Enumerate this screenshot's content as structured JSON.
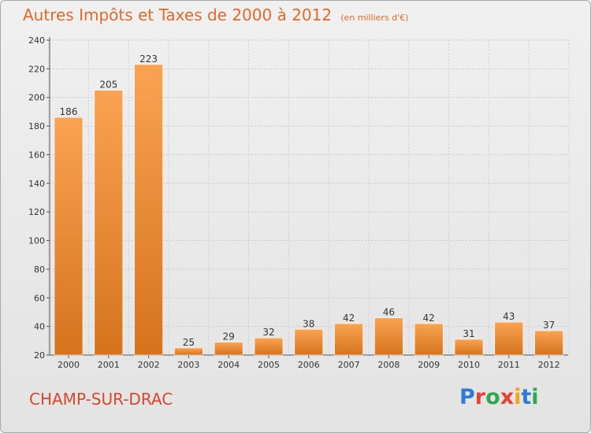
{
  "header": {
    "title": "Autres Impôts et Taxes de 2000 à 2012",
    "unit": "(en milliers d'€)"
  },
  "footer": {
    "city": "CHAMP-SUR-DRAC",
    "logo_letters": [
      {
        "ch": "P",
        "color": "#2e7bd6"
      },
      {
        "ch": "r",
        "color": "#e8432e"
      },
      {
        "ch": "o",
        "color": "#2fa84f"
      },
      {
        "ch": "x",
        "color": "#e8432e"
      },
      {
        "ch": "i",
        "color": "#f2a51a"
      },
      {
        "ch": "t",
        "color": "#2e7bd6"
      },
      {
        "ch": "i",
        "color": "#2fa84f"
      }
    ]
  },
  "colors": {
    "bar_light": "#f9a352",
    "bar_dark": "#d6731d",
    "title": "#e06a2b",
    "city": "#d9462c"
  },
  "chart_data": {
    "type": "bar",
    "title": "Autres Impôts et Taxes de 2000 à 2012",
    "subtitle": "(en milliers d'€)",
    "xlabel": "",
    "ylabel": "",
    "categories": [
      "2000",
      "2001",
      "2002",
      "2003",
      "2004",
      "2005",
      "2006",
      "2007",
      "2008",
      "2009",
      "2010",
      "2011",
      "2012"
    ],
    "values": [
      186,
      205,
      223,
      25,
      29,
      32,
      38,
      42,
      46,
      42,
      31,
      43,
      37
    ],
    "ylim": [
      20,
      240
    ],
    "yticks": [
      20,
      40,
      60,
      80,
      100,
      120,
      140,
      160,
      180,
      200,
      220,
      240
    ],
    "grid": true,
    "legend": "none"
  }
}
